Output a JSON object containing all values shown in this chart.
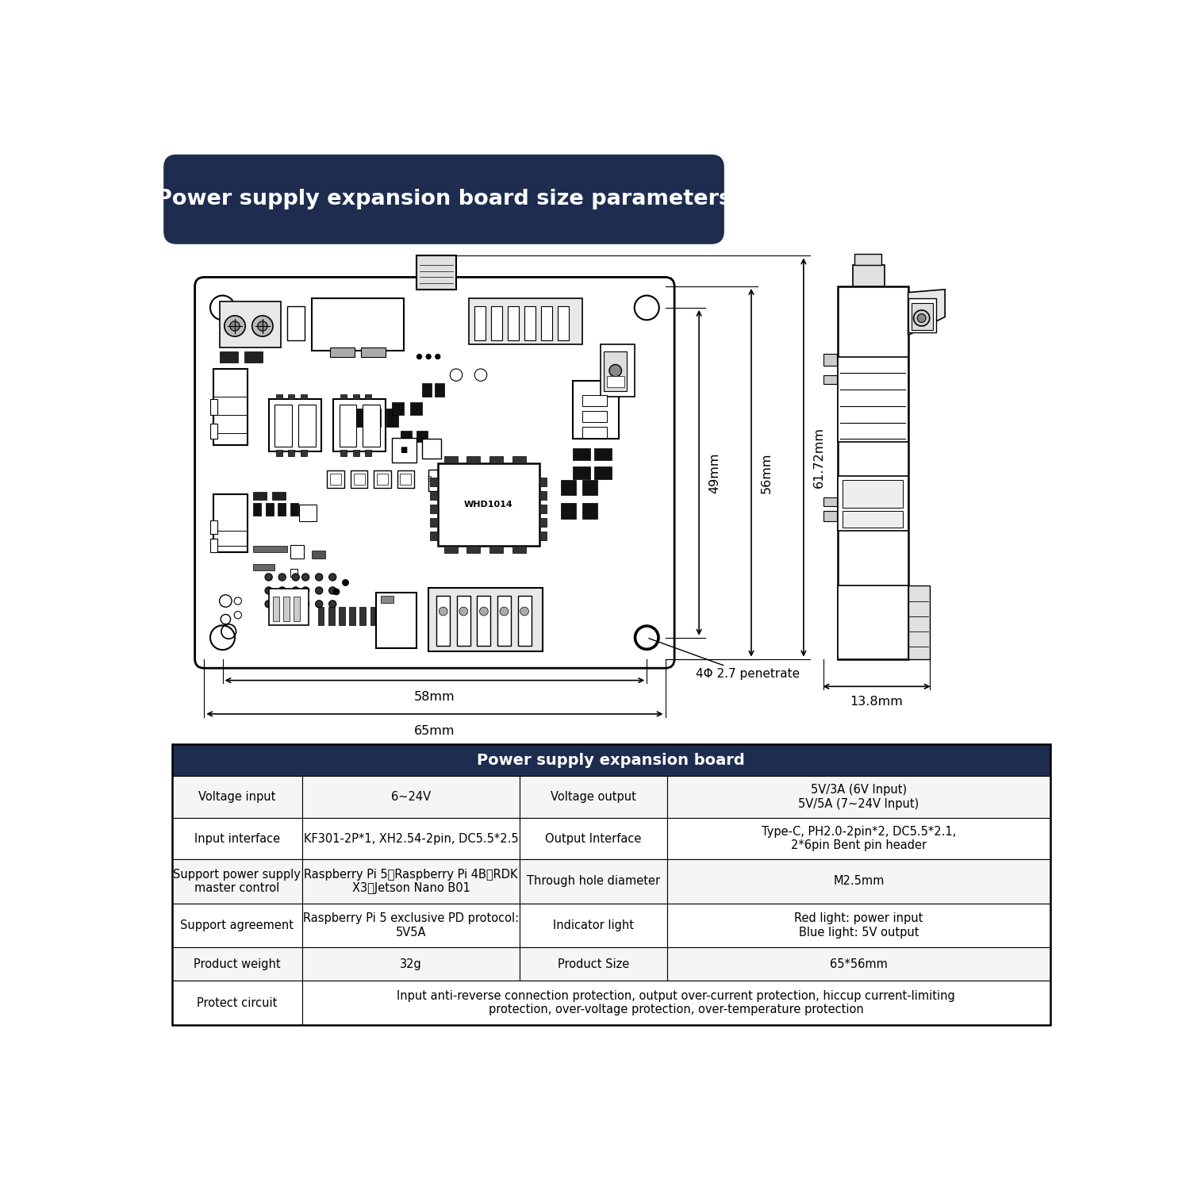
{
  "title": "Power supply expansion board size parameters",
  "title_bg": "#1e2d4f",
  "title_color": "#ffffff",
  "table_header": "Power supply expansion board",
  "table_header_bg": "#1e2d4f",
  "table_header_color": "#ffffff",
  "table_rows": [
    {
      "col1": "Voltage input",
      "col2": "6~24V",
      "col3": "Voltage output",
      "col4": "5V/3A (6V Input)\n5V/5A (7~24V Input)"
    },
    {
      "col1": "Input interface",
      "col2": "KF301-2P*1, XH2.54-2pin, DC5.5*2.5",
      "col3": "Output Interface",
      "col4": "Type-C, PH2.0-2pin*2, DC5.5*2.1,\n2*6pin Bent pin header"
    },
    {
      "col1": "Support power supply\nmaster control",
      "col2": "Raspberry Pi 5、Raspberry Pi 4B、RDK\nX3、Jetson Nano B01",
      "col3": "Through hole diameter",
      "col4": "M2.5mm"
    },
    {
      "col1": "Support agreement",
      "col2": "Raspberry Pi 5 exclusive PD protocol:\n5V5A",
      "col3": "Indicator light",
      "col4": "Red light: power input\nBlue light: 5V output"
    },
    {
      "col1": "Product weight",
      "col2": "32g",
      "col3": "Product Size",
      "col4": "65*56mm"
    },
    {
      "col1": "Protect circuit",
      "col2": "Input anti-reverse connection protection, output over-current protection, hiccup current-limiting\nprotection, over-voltage protection, over-temperature protection",
      "col3": "",
      "col4": ""
    }
  ],
  "dim_49mm": "49mm",
  "dim_56mm": "56mm",
  "dim_6172mm": "61.72mm",
  "dim_58mm": "58mm",
  "dim_65mm": "65mm",
  "dim_138mm": "13.8mm",
  "hole_label": "4Φ 2.7 penetrate"
}
